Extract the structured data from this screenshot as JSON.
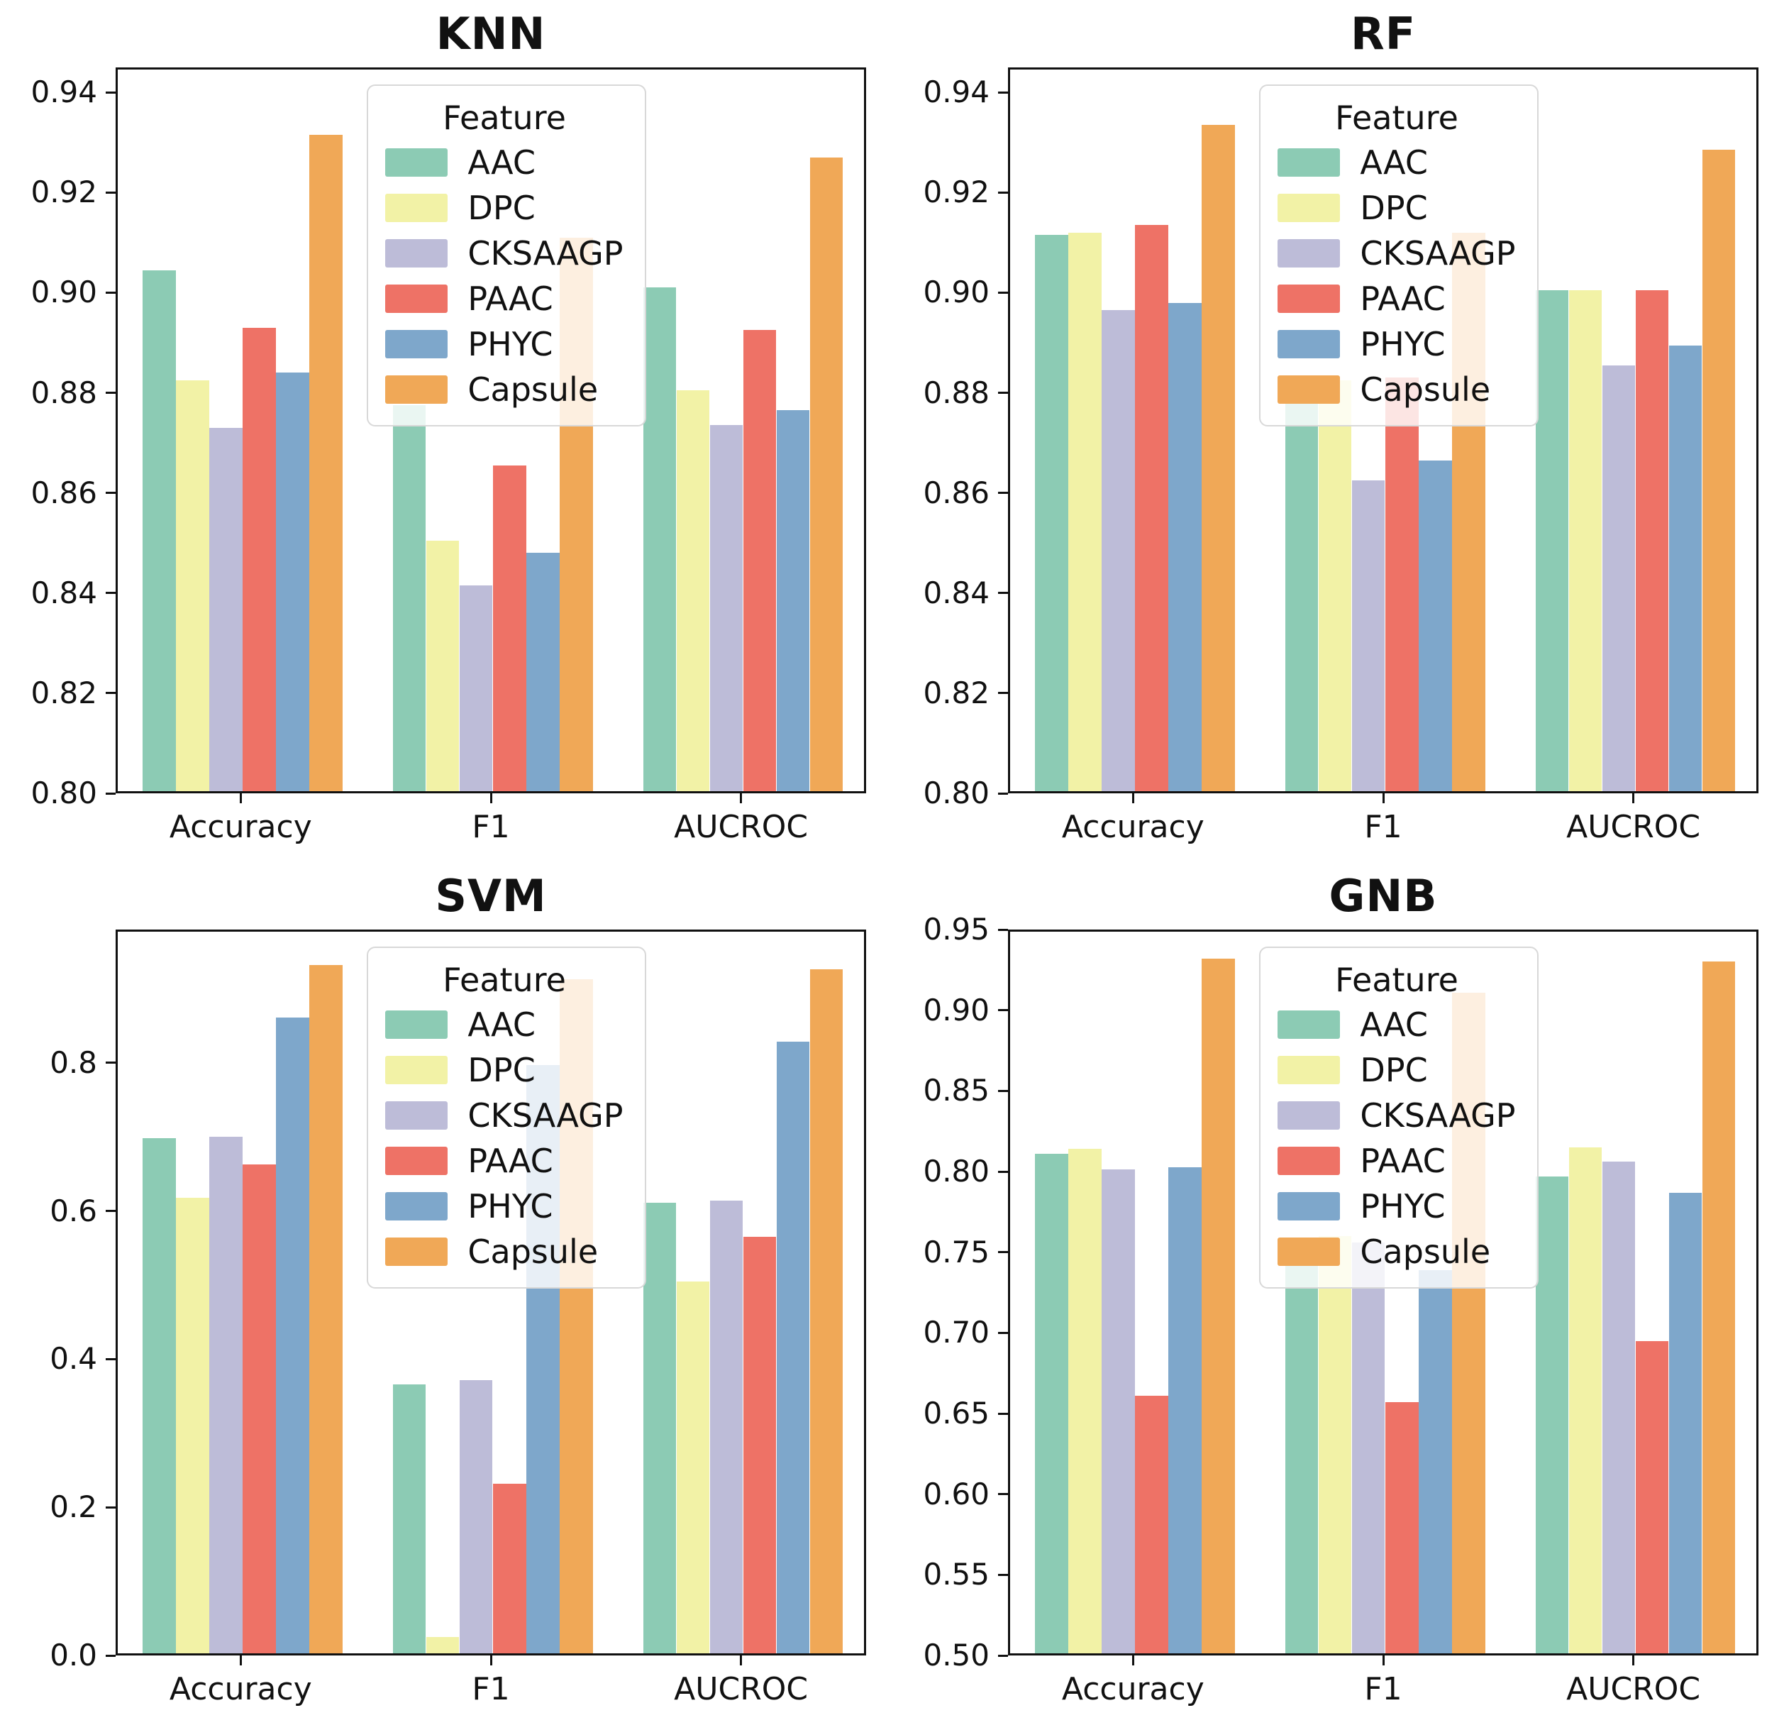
{
  "figure": {
    "background": "#ffffff",
    "rows": 2,
    "cols": 2,
    "legend_title": "Feature",
    "features": [
      {
        "name": "AAC",
        "color": "#8ccbb4"
      },
      {
        "name": "DPC",
        "color": "#f2f2a6"
      },
      {
        "name": "CKSAAGP",
        "color": "#bdbcd8"
      },
      {
        "name": "PAAC",
        "color": "#ee7266"
      },
      {
        "name": "PHYC",
        "color": "#7ea7cb"
      },
      {
        "name": "Capsule",
        "color": "#f0a857"
      }
    ]
  },
  "chart_data": [
    {
      "type": "bar",
      "title": "KNN",
      "categories": [
        "Accuracy",
        "F1",
        "AUCROC"
      ],
      "xlabel": "",
      "ylabel": "",
      "ylim": [
        0.8,
        0.945
      ],
      "ytick_values": [
        0.8,
        0.82,
        0.84,
        0.86,
        0.88,
        0.9,
        0.92,
        0.94
      ],
      "ytick_labels": [
        "0.80",
        "0.82",
        "0.84",
        "0.86",
        "0.88",
        "0.90",
        "0.92",
        "0.94"
      ],
      "grid": false,
      "legend_title": "Feature",
      "legend_position": "upper center",
      "series": [
        {
          "name": "AAC",
          "color": "#8ccbb4",
          "values": [
            0.9045,
            0.8775,
            0.901
          ]
        },
        {
          "name": "DPC",
          "color": "#f2f2a6",
          "values": [
            0.8825,
            0.8505,
            0.8805
          ]
        },
        {
          "name": "CKSAAGP",
          "color": "#bdbcd8",
          "values": [
            0.873,
            0.8415,
            0.8735
          ]
        },
        {
          "name": "PAAC",
          "color": "#ee7266",
          "values": [
            0.893,
            0.8655,
            0.8925
          ]
        },
        {
          "name": "PHYC",
          "color": "#7ea7cb",
          "values": [
            0.884,
            0.848,
            0.8765
          ]
        },
        {
          "name": "Capsule",
          "color": "#f0a857",
          "values": [
            0.9315,
            0.911,
            0.927
          ]
        }
      ]
    },
    {
      "type": "bar",
      "title": "RF",
      "categories": [
        "Accuracy",
        "F1",
        "AUCROC"
      ],
      "xlabel": "",
      "ylabel": "",
      "ylim": [
        0.8,
        0.945
      ],
      "ytick_values": [
        0.8,
        0.82,
        0.84,
        0.86,
        0.88,
        0.9,
        0.92,
        0.94
      ],
      "ytick_labels": [
        "0.80",
        "0.82",
        "0.84",
        "0.86",
        "0.88",
        "0.90",
        "0.92",
        "0.94"
      ],
      "grid": false,
      "legend_title": "Feature",
      "legend_position": "upper center",
      "series": [
        {
          "name": "AAC",
          "color": "#8ccbb4",
          "values": [
            0.9115,
            0.8825,
            0.9005
          ]
        },
        {
          "name": "DPC",
          "color": "#f2f2a6",
          "values": [
            0.912,
            0.8825,
            0.9005
          ]
        },
        {
          "name": "CKSAAGP",
          "color": "#bdbcd8",
          "values": [
            0.8965,
            0.8625,
            0.8855
          ]
        },
        {
          "name": "PAAC",
          "color": "#ee7266",
          "values": [
            0.9135,
            0.883,
            0.9005
          ]
        },
        {
          "name": "PHYC",
          "color": "#7ea7cb",
          "values": [
            0.898,
            0.8665,
            0.8895
          ]
        },
        {
          "name": "Capsule",
          "color": "#f0a857",
          "values": [
            0.9335,
            0.912,
            0.9285
          ]
        }
      ]
    },
    {
      "type": "bar",
      "title": "SVM",
      "categories": [
        "Accuracy",
        "F1",
        "AUCROC"
      ],
      "xlabel": "",
      "ylabel": "",
      "ylim": [
        0.0,
        0.98
      ],
      "ytick_values": [
        0.0,
        0.2,
        0.4,
        0.6,
        0.8
      ],
      "ytick_labels": [
        "0.0",
        "0.2",
        "0.4",
        "0.6",
        "0.8"
      ],
      "grid": false,
      "legend_title": "Feature",
      "legend_position": "upper center",
      "series": [
        {
          "name": "AAC",
          "color": "#8ccbb4",
          "values": [
            0.698,
            0.366,
            0.611
          ]
        },
        {
          "name": "DPC",
          "color": "#f2f2a6",
          "values": [
            0.618,
            0.025,
            0.505
          ]
        },
        {
          "name": "CKSAAGP",
          "color": "#bdbcd8",
          "values": [
            0.7,
            0.372,
            0.614
          ]
        },
        {
          "name": "PAAC",
          "color": "#ee7266",
          "values": [
            0.663,
            0.232,
            0.565
          ]
        },
        {
          "name": "PHYC",
          "color": "#7ea7cb",
          "values": [
            0.861,
            0.797,
            0.829
          ]
        },
        {
          "name": "Capsule",
          "color": "#f0a857",
          "values": [
            0.932,
            0.913,
            0.926
          ]
        }
      ]
    },
    {
      "type": "bar",
      "title": "GNB",
      "categories": [
        "Accuracy",
        "F1",
        "AUCROC"
      ],
      "xlabel": "",
      "ylabel": "",
      "ylim": [
        0.5,
        0.95
      ],
      "ytick_values": [
        0.5,
        0.55,
        0.6,
        0.65,
        0.7,
        0.75,
        0.8,
        0.85,
        0.9,
        0.95
      ],
      "ytick_labels": [
        "0.50",
        "0.55",
        "0.60",
        "0.65",
        "0.70",
        "0.75",
        "0.80",
        "0.85",
        "0.90",
        "0.95"
      ],
      "grid": false,
      "legend_title": "Feature",
      "legend_position": "upper center",
      "series": [
        {
          "name": "AAC",
          "color": "#8ccbb4",
          "values": [
            0.811,
            0.75,
            0.797
          ]
        },
        {
          "name": "DPC",
          "color": "#f2f2a6",
          "values": [
            0.814,
            0.76,
            0.815
          ]
        },
        {
          "name": "CKSAAGP",
          "color": "#bdbcd8",
          "values": [
            0.8015,
            0.756,
            0.806
          ]
        },
        {
          "name": "PAAC",
          "color": "#ee7266",
          "values": [
            0.661,
            0.657,
            0.695
          ]
        },
        {
          "name": "PHYC",
          "color": "#7ea7cb",
          "values": [
            0.8025,
            0.739,
            0.787
          ]
        },
        {
          "name": "Capsule",
          "color": "#f0a857",
          "values": [
            0.932,
            0.911,
            0.93
          ]
        }
      ]
    }
  ]
}
